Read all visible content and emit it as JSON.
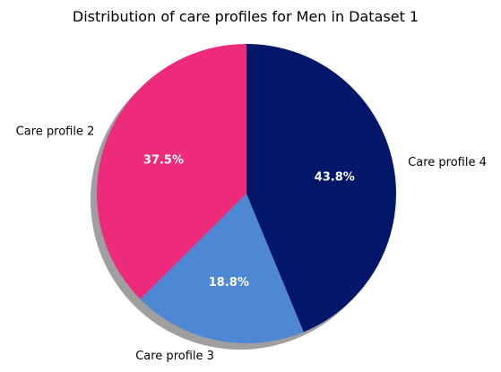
{
  "chart_data": {
    "type": "pie",
    "title": "Distribution of care profiles for Men in Dataset 1",
    "slices": [
      {
        "label": "Care profile 2",
        "value": 37.5,
        "pct_label": "37.5%",
        "color": "#ee2a7b"
      },
      {
        "label": "Care profile 3",
        "value": 18.8,
        "pct_label": "18.8%",
        "color": "#4e87d4"
      },
      {
        "label": "Care profile 4",
        "value": 43.8,
        "pct_label": "43.8%",
        "color": "#03176a"
      }
    ],
    "start_angle_deg": 90,
    "direction": "counterclockwise",
    "shadow": true
  }
}
